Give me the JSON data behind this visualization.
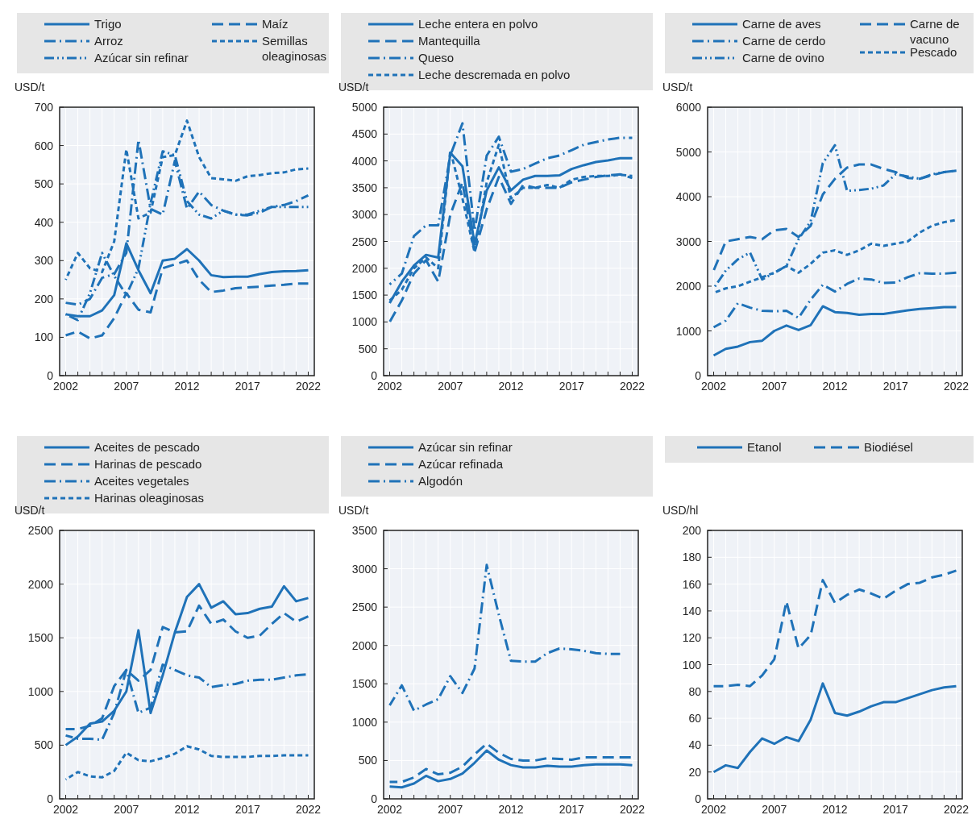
{
  "chart_data": [
    {
      "type": "line",
      "ylabel": "USD/t",
      "x": [
        2002,
        2003,
        2004,
        2005,
        2006,
        2007,
        2008,
        2009,
        2010,
        2011,
        2012,
        2013,
        2014,
        2015,
        2016,
        2017,
        2018,
        2019,
        2020,
        2021,
        2022
      ],
      "xlim": [
        2001.5,
        2022.5
      ],
      "xticks": [
        2002,
        {
          "value": 2003,
          "label": null
        },
        {
          "value": 2004,
          "label": null
        },
        {
          "value": 2005,
          "label": null
        },
        {
          "value": 2006,
          "label": null
        },
        2007,
        {
          "value": 2008,
          "label": null
        },
        {
          "value": 2009,
          "label": null
        },
        {
          "value": 2010,
          "label": null
        },
        {
          "value": 2011,
          "label": null
        },
        2012,
        {
          "value": 2013,
          "label": null
        },
        {
          "value": 2014,
          "label": null
        },
        {
          "value": 2015,
          "label": null
        },
        {
          "value": 2016,
          "label": null
        },
        2017,
        {
          "value": 2018,
          "label": null
        },
        {
          "value": 2019,
          "label": null
        },
        {
          "value": 2020,
          "label": null
        },
        {
          "value": 2021,
          "label": null
        },
        2022
      ],
      "ylim": [
        0,
        700
      ],
      "yticks": [
        0,
        100,
        200,
        300,
        400,
        500,
        600,
        700
      ],
      "grid": true,
      "legend": "top",
      "series": [
        {
          "name": "Trigo",
          "color": "#1f72b8",
          "line_style": "solid",
          "values": [
            160,
            155,
            155,
            170,
            210,
            345,
            275,
            215,
            300,
            305,
            330,
            300,
            262,
            257,
            258,
            258,
            265,
            270,
            272,
            273,
            275
          ]
        },
        {
          "name": "Arroz",
          "color": "#1f72b8",
          "line_style": "dashdot",
          "values": [
            190,
            185,
            200,
            255,
            265,
            320,
            615,
            435,
            420,
            560,
            435,
            480,
            445,
            430,
            420,
            418,
            425,
            440,
            445,
            455,
            470
          ]
        },
        {
          "name": "Azúcar sin refinar",
          "color": "#1f72b8",
          "line_style": "dashdotdot",
          "values": [
            160,
            145,
            215,
            320,
            260,
            210,
            280,
            450,
            585,
            575,
            455,
            420,
            410,
            430,
            420,
            420,
            430,
            440,
            440,
            440,
            440
          ]
        },
        {
          "name": "Maíz",
          "color": "#1f72b8",
          "line_style": "dashed",
          "values": [
            105,
            115,
            97,
            105,
            150,
            215,
            172,
            165,
            280,
            290,
            300,
            250,
            218,
            222,
            228,
            230,
            232,
            235,
            237,
            240,
            240
          ]
        },
        {
          "name": "Semillas oleaginosas",
          "color": "#1f72b8",
          "line_style": "shortdash",
          "values": [
            250,
            320,
            280,
            270,
            350,
            590,
            410,
            425,
            570,
            575,
            665,
            570,
            515,
            512,
            508,
            520,
            523,
            528,
            530,
            538,
            540
          ]
        }
      ]
    },
    {
      "type": "line",
      "ylabel": "USD/t",
      "x": [
        2002,
        2003,
        2004,
        2005,
        2006,
        2007,
        2008,
        2009,
        2010,
        2011,
        2012,
        2013,
        2014,
        2015,
        2016,
        2017,
        2018,
        2019,
        2020,
        2021,
        2022
      ],
      "xlim": [
        2001.5,
        2022.5
      ],
      "xticks": [
        2002,
        {
          "value": 2003,
          "label": null
        },
        {
          "value": 2004,
          "label": null
        },
        {
          "value": 2005,
          "label": null
        },
        {
          "value": 2006,
          "label": null
        },
        2007,
        {
          "value": 2008,
          "label": null
        },
        {
          "value": 2009,
          "label": null
        },
        {
          "value": 2010,
          "label": null
        },
        {
          "value": 2011,
          "label": null
        },
        2012,
        {
          "value": 2013,
          "label": null
        },
        {
          "value": 2014,
          "label": null
        },
        {
          "value": 2015,
          "label": null
        },
        {
          "value": 2016,
          "label": null
        },
        2017,
        {
          "value": 2018,
          "label": null
        },
        {
          "value": 2019,
          "label": null
        },
        {
          "value": 2020,
          "label": null
        },
        {
          "value": 2021,
          "label": null
        },
        2022
      ],
      "ylim": [
        0,
        5000
      ],
      "yticks": [
        0,
        500,
        1000,
        1500,
        2000,
        2500,
        3000,
        3500,
        4000,
        4500,
        5000
      ],
      "grid": true,
      "legend": "top",
      "series": [
        {
          "name": "Leche entera en polvo",
          "color": "#1f72b8",
          "line_style": "solid",
          "values": [
            1350,
            1750,
            2050,
            2250,
            2200,
            4150,
            3900,
            2450,
            3450,
            3880,
            3450,
            3650,
            3720,
            3720,
            3730,
            3850,
            3920,
            3980,
            4010,
            4050,
            4050
          ]
        },
        {
          "name": "Mantequilla",
          "color": "#1f72b8",
          "line_style": "dashed",
          "values": [
            1000,
            1400,
            1900,
            2150,
            1750,
            3000,
            3600,
            2300,
            3100,
            3700,
            3200,
            3550,
            3500,
            3500,
            3500,
            3600,
            3650,
            3700,
            3730,
            3750,
            3680
          ]
        },
        {
          "name": "Queso",
          "color": "#1f72b8",
          "line_style": "dashdot",
          "values": [
            1700,
            1900,
            2600,
            2800,
            2800,
            4100,
            4700,
            2700,
            4100,
            4450,
            3800,
            3850,
            3950,
            4050,
            4100,
            4200,
            4300,
            4350,
            4400,
            4430,
            4430
          ]
        },
        {
          "name": "Leche descremada en polvo",
          "color": "#1f72b8",
          "line_style": "shortdash",
          "values": [
            1400,
            1600,
            2000,
            2200,
            2000,
            4200,
            3300,
            2300,
            3600,
            4300,
            3300,
            3500,
            3500,
            3550,
            3500,
            3650,
            3700,
            3720,
            3720,
            3740,
            3720
          ]
        }
      ]
    },
    {
      "type": "line",
      "ylabel": "USD/t",
      "x": [
        2002,
        2003,
        2004,
        2005,
        2006,
        2007,
        2008,
        2009,
        2010,
        2011,
        2012,
        2013,
        2014,
        2015,
        2016,
        2017,
        2018,
        2019,
        2020,
        2021,
        2022
      ],
      "xlim": [
        2001.5,
        2022.5
      ],
      "xticks": [
        2002,
        {
          "value": 2003,
          "label": null
        },
        {
          "value": 2004,
          "label": null
        },
        {
          "value": 2005,
          "label": null
        },
        {
          "value": 2006,
          "label": null
        },
        2007,
        {
          "value": 2008,
          "label": null
        },
        {
          "value": 2009,
          "label": null
        },
        {
          "value": 2010,
          "label": null
        },
        {
          "value": 2011,
          "label": null
        },
        2012,
        {
          "value": 2013,
          "label": null
        },
        {
          "value": 2014,
          "label": null
        },
        {
          "value": 2015,
          "label": null
        },
        {
          "value": 2016,
          "label": null
        },
        2017,
        {
          "value": 2018,
          "label": null
        },
        {
          "value": 2019,
          "label": null
        },
        {
          "value": 2020,
          "label": null
        },
        {
          "value": 2021,
          "label": null
        },
        2022
      ],
      "ylim": [
        0,
        6000
      ],
      "yticks": [
        0,
        1000,
        2000,
        3000,
        4000,
        5000,
        6000
      ],
      "grid": true,
      "legend": "top",
      "series": [
        {
          "name": "Carne de aves",
          "color": "#1f72b8",
          "line_style": "solid",
          "values": [
            450,
            600,
            650,
            750,
            780,
            1000,
            1120,
            1020,
            1130,
            1550,
            1420,
            1400,
            1360,
            1380,
            1380,
            1420,
            1460,
            1490,
            1510,
            1530,
            1530
          ]
        },
        {
          "name": "Carne de cerdo",
          "color": "#1f72b8",
          "line_style": "dashdot",
          "values": [
            1080,
            1230,
            1620,
            1520,
            1450,
            1440,
            1450,
            1290,
            1700,
            2030,
            1880,
            2050,
            2170,
            2150,
            2070,
            2080,
            2200,
            2290,
            2280,
            2280,
            2300
          ]
        },
        {
          "name": "Carne de ovino",
          "color": "#1f72b8",
          "line_style": "dashdotdot",
          "values": [
            1950,
            2350,
            2600,
            2750,
            2150,
            2300,
            2450,
            3050,
            3450,
            4750,
            5150,
            4130,
            4150,
            4180,
            4250,
            4500,
            4450,
            4400,
            4500,
            4550,
            4580
          ]
        },
        {
          "name": "Carne de vacuno",
          "color": "#1f72b8",
          "line_style": "dashed",
          "values": [
            2350,
            3000,
            3050,
            3100,
            3050,
            3250,
            3280,
            3100,
            3350,
            4050,
            4400,
            4650,
            4720,
            4720,
            4620,
            4550,
            4420,
            4400,
            4480,
            4550,
            4580
          ]
        },
        {
          "name": "Pescado",
          "color": "#1f72b8",
          "line_style": "shortdash",
          "values": [
            1850,
            1950,
            2000,
            2100,
            2200,
            2300,
            2450,
            2300,
            2500,
            2750,
            2800,
            2700,
            2800,
            2950,
            2900,
            2950,
            3000,
            3200,
            3350,
            3430,
            3480
          ]
        }
      ]
    },
    {
      "type": "line",
      "ylabel": "USD/t",
      "x": [
        2002,
        2003,
        2004,
        2005,
        2006,
        2007,
        2008,
        2009,
        2010,
        2011,
        2012,
        2013,
        2014,
        2015,
        2016,
        2017,
        2018,
        2019,
        2020,
        2021,
        2022
      ],
      "xlim": [
        2001.5,
        2022.5
      ],
      "xticks": [
        2002,
        {
          "value": 2003,
          "label": null
        },
        {
          "value": 2004,
          "label": null
        },
        {
          "value": 2005,
          "label": null
        },
        {
          "value": 2006,
          "label": null
        },
        2007,
        {
          "value": 2008,
          "label": null
        },
        {
          "value": 2009,
          "label": null
        },
        {
          "value": 2010,
          "label": null
        },
        {
          "value": 2011,
          "label": null
        },
        2012,
        {
          "value": 2013,
          "label": null
        },
        {
          "value": 2014,
          "label": null
        },
        {
          "value": 2015,
          "label": null
        },
        {
          "value": 2016,
          "label": null
        },
        2017,
        {
          "value": 2018,
          "label": null
        },
        {
          "value": 2019,
          "label": null
        },
        {
          "value": 2020,
          "label": null
        },
        {
          "value": 2021,
          "label": null
        },
        2022
      ],
      "ylim": [
        0,
        2500
      ],
      "yticks": [
        0,
        500,
        1000,
        1500,
        2000,
        2500
      ],
      "grid": true,
      "legend": "top",
      "series": [
        {
          "name": "Aceites de pescado",
          "color": "#1f72b8",
          "line_style": "solid",
          "values": [
            500,
            580,
            700,
            720,
            820,
            1000,
            1570,
            800,
            1150,
            1550,
            1880,
            2000,
            1780,
            1840,
            1720,
            1730,
            1770,
            1790,
            1980,
            1840,
            1870
          ]
        },
        {
          "name": "Harinas de pescado",
          "color": "#1f72b8",
          "line_style": "dashed",
          "values": [
            650,
            650,
            680,
            750,
            1050,
            1200,
            1100,
            1200,
            1600,
            1550,
            1560,
            1800,
            1630,
            1670,
            1560,
            1500,
            1520,
            1630,
            1730,
            1650,
            1700
          ]
        },
        {
          "name": "Aceites vegetales",
          "color": "#1f72b8",
          "line_style": "dashdot",
          "values": [
            590,
            560,
            560,
            550,
            800,
            1200,
            800,
            850,
            1250,
            1200,
            1150,
            1130,
            1040,
            1060,
            1070,
            1100,
            1110,
            1110,
            1130,
            1150,
            1160
          ]
        },
        {
          "name": "Harinas oleaginosas",
          "color": "#1f72b8",
          "line_style": "shortdash",
          "values": [
            180,
            250,
            210,
            200,
            260,
            430,
            360,
            350,
            380,
            420,
            490,
            460,
            400,
            390,
            390,
            390,
            400,
            400,
            405,
            405,
            405
          ]
        }
      ]
    },
    {
      "type": "line",
      "ylabel": "USD/t",
      "x": [
        2002,
        2003,
        2004,
        2005,
        2006,
        2007,
        2008,
        2009,
        2010,
        2011,
        2012,
        2013,
        2014,
        2015,
        2016,
        2017,
        2018,
        2019,
        2020,
        2021,
        2022
      ],
      "xlim": [
        2001.5,
        2022.5
      ],
      "xticks": [
        2002,
        {
          "value": 2003,
          "label": null
        },
        {
          "value": 2004,
          "label": null
        },
        {
          "value": 2005,
          "label": null
        },
        {
          "value": 2006,
          "label": null
        },
        2007,
        {
          "value": 2008,
          "label": null
        },
        {
          "value": 2009,
          "label": null
        },
        {
          "value": 2010,
          "label": null
        },
        {
          "value": 2011,
          "label": null
        },
        2012,
        {
          "value": 2013,
          "label": null
        },
        {
          "value": 2014,
          "label": null
        },
        {
          "value": 2015,
          "label": null
        },
        {
          "value": 2016,
          "label": null
        },
        2017,
        {
          "value": 2018,
          "label": null
        },
        {
          "value": 2019,
          "label": null
        },
        {
          "value": 2020,
          "label": null
        },
        {
          "value": 2021,
          "label": null
        },
        2022
      ],
      "ylim": [
        0,
        3500
      ],
      "yticks": [
        0,
        500,
        1000,
        1500,
        2000,
        2500,
        3000,
        3500
      ],
      "grid": true,
      "legend": "top",
      "series": [
        {
          "name": "Azúcar sin refinar",
          "color": "#1f72b8",
          "line_style": "solid",
          "values": [
            160,
            150,
            200,
            300,
            230,
            260,
            330,
            470,
            630,
            510,
            440,
            410,
            410,
            430,
            420,
            420,
            440,
            450,
            450,
            450,
            440
          ]
        },
        {
          "name": "Azúcar refinada",
          "color": "#1f72b8",
          "line_style": "dashed",
          "values": [
            220,
            220,
            280,
            390,
            320,
            340,
            420,
            580,
            720,
            600,
            520,
            500,
            500,
            530,
            520,
            510,
            540,
            540,
            540,
            540,
            540
          ]
        },
        {
          "name": "Algodón",
          "color": "#1f72b8",
          "line_style": "dashdot",
          "values": [
            1220,
            1480,
            1150,
            1230,
            1300,
            1600,
            1380,
            1700,
            3050,
            2400,
            1800,
            1790,
            1790,
            1900,
            1960,
            1950,
            1930,
            1900,
            1890,
            1890,
            null
          ]
        }
      ]
    },
    {
      "type": "line",
      "ylabel": "USD/hl",
      "x": [
        2002,
        2003,
        2004,
        2005,
        2006,
        2007,
        2008,
        2009,
        2010,
        2011,
        2012,
        2013,
        2014,
        2015,
        2016,
        2017,
        2018,
        2019,
        2020,
        2021,
        2022
      ],
      "xlim": [
        2001.5,
        2022.5
      ],
      "xticks": [
        2002,
        {
          "value": 2003,
          "label": null
        },
        {
          "value": 2004,
          "label": null
        },
        {
          "value": 2005,
          "label": null
        },
        {
          "value": 2006,
          "label": null
        },
        2007,
        {
          "value": 2008,
          "label": null
        },
        {
          "value": 2009,
          "label": null
        },
        {
          "value": 2010,
          "label": null
        },
        {
          "value": 2011,
          "label": null
        },
        2012,
        {
          "value": 2013,
          "label": null
        },
        {
          "value": 2014,
          "label": null
        },
        {
          "value": 2015,
          "label": null
        },
        {
          "value": 2016,
          "label": null
        },
        2017,
        {
          "value": 2018,
          "label": null
        },
        {
          "value": 2019,
          "label": null
        },
        {
          "value": 2020,
          "label": null
        },
        {
          "value": 2021,
          "label": null
        },
        2022
      ],
      "ylim": [
        0,
        200
      ],
      "yticks": [
        0,
        20,
        40,
        60,
        80,
        100,
        120,
        140,
        160,
        180,
        200
      ],
      "grid": true,
      "legend": "top",
      "series": [
        {
          "name": "Etanol",
          "color": "#1f72b8",
          "line_style": "solid",
          "values": [
            20,
            25,
            23,
            35,
            45,
            41,
            46,
            43,
            59,
            86,
            64,
            62,
            65,
            69,
            72,
            72,
            75,
            78,
            81,
            83,
            84
          ]
        },
        {
          "name": "Biodiésel",
          "color": "#1f72b8",
          "line_style": "dashed",
          "values": [
            84,
            84,
            85,
            84,
            92,
            104,
            147,
            112,
            122,
            163,
            146,
            152,
            156,
            153,
            149,
            155,
            160,
            161,
            165,
            167,
            170
          ]
        }
      ]
    }
  ]
}
